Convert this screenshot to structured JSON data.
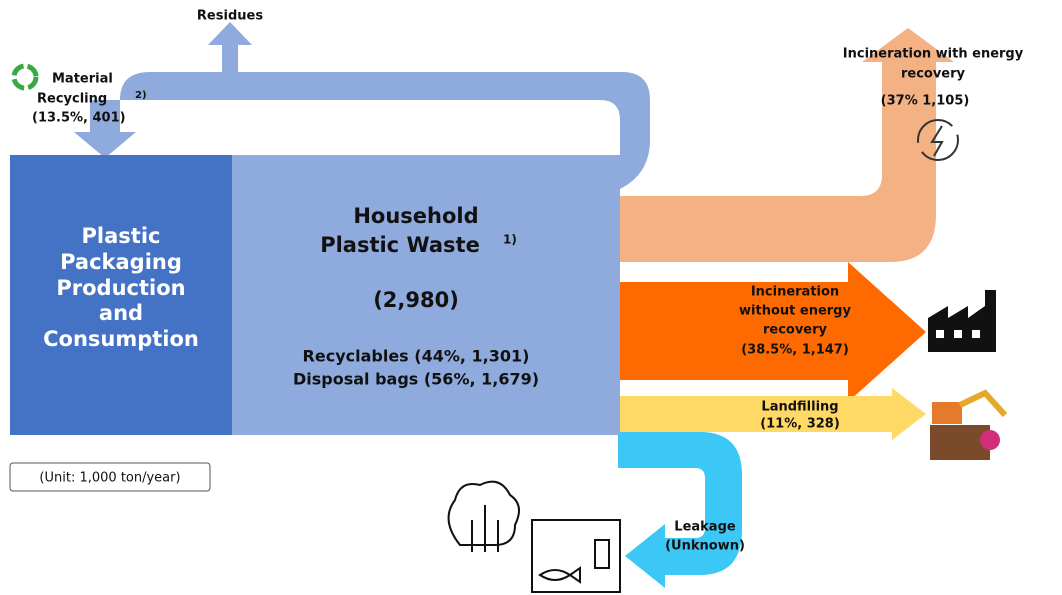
{
  "flows": {
    "residues": "Residues",
    "recycling": {
      "line1": "Material",
      "line2": "Recycling",
      "note": "2)",
      "amount": "(13.5%, 401)"
    },
    "energy_recovery": {
      "line1": "Incineration with energy",
      "line2": "recovery",
      "amount": "(37% 1,105)"
    },
    "no_energy_recovery": {
      "line1": "Incineration",
      "line2": "without energy",
      "line3": "recovery",
      "amount": "(38.5%, 1,147)"
    },
    "landfilling": {
      "label": "Landfilling",
      "amount": "(11%, 328)"
    },
    "leakage": {
      "label": "Leakage",
      "amount": "(Unknown)"
    }
  },
  "nodes": {
    "production": {
      "lines": [
        "Plastic",
        "Packaging",
        "Production",
        "and",
        "Consumption"
      ]
    },
    "household": {
      "line1": "Household",
      "line2": "Plastic Waste",
      "note": "1)",
      "total": "(2,980)",
      "recyclables": "Recyclables (44%, 1,301)",
      "disposal": "Disposal bags (56%, 1,679)"
    }
  },
  "unit": "(Unit: 1,000 ton/year)"
}
